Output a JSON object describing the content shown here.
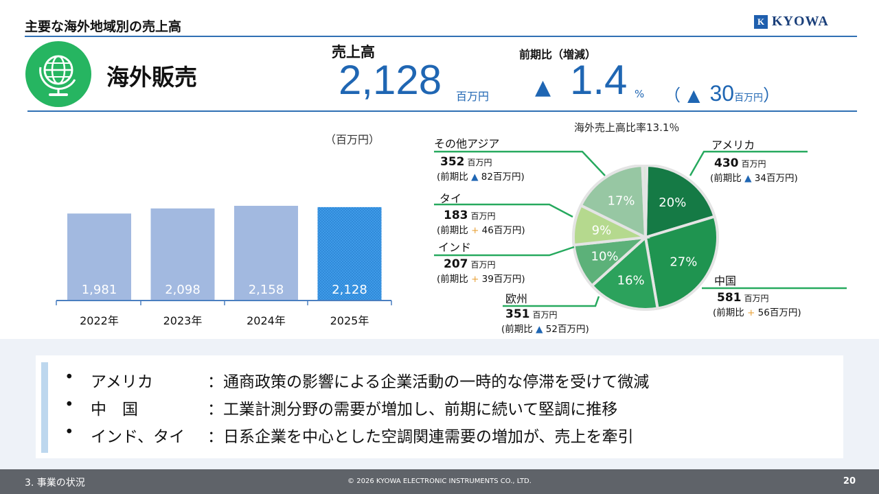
{
  "header": {
    "title": "主要な海外地域別の売上高",
    "logo_text": "KYOWA"
  },
  "section": {
    "title": "海外販売",
    "icon": "globe-icon",
    "icon_color": "#26b561"
  },
  "kpi": {
    "sales_label": "売上高",
    "sales_value": "2,128",
    "sales_unit": "百万円",
    "yoy_label": "前期比（増減）",
    "yoy_triangle": "▲",
    "yoy_value": "1.4",
    "yoy_pct": "%",
    "yoy_paren_open": "（",
    "yoy_paren_triangle": "▲",
    "yoy_amount": "30",
    "yoy_amount_unit": "百万円",
    "yoy_paren_close": "）"
  },
  "colors": {
    "accent_blue": "#1f66b3",
    "bar_fill": "#a2b9e0",
    "bar_highlight": "#3e9be8",
    "increase_marker": "#e8a23a"
  },
  "chart_data": [
    {
      "type": "bar",
      "unit_label": "（百万円）",
      "categories": [
        "2022年",
        "2023年",
        "2024年",
        "2025年"
      ],
      "values": [
        1981,
        2098,
        2158,
        2128
      ],
      "value_labels": [
        "1,981",
        "2,098",
        "2,158",
        "2,128"
      ],
      "highlight_index": 3,
      "grid": false
    },
    {
      "type": "pie",
      "title": "海外売上高比率13.1％",
      "slices": [
        {
          "name": "アメリカ",
          "percent": 20,
          "label": "20%",
          "color": "#157a45"
        },
        {
          "name": "中国",
          "percent": 27,
          "label": "27%",
          "color": "#1f9450"
        },
        {
          "name": "欧州",
          "percent": 16,
          "label": "16%",
          "color": "#2ca25c"
        },
        {
          "name": "インド",
          "percent": 10,
          "label": "10%",
          "color": "#5cb179"
        },
        {
          "name": "タイ",
          "percent": 9,
          "label": "9%",
          "color": "#b5d98e"
        },
        {
          "name": "その他アジア",
          "percent": 17,
          "label": "17%",
          "color": "#97c7a3"
        },
        {
          "name": "",
          "percent": 1,
          "label": "",
          "color": "#d8e8d8"
        }
      ]
    }
  ],
  "regions": {
    "other_asia": {
      "name": "その他アジア",
      "value": "352",
      "unit": "百万円",
      "change_prefix": "(前期比",
      "marker": "▲",
      "change": " 82百万円)"
    },
    "thai": {
      "name": "タイ",
      "value": "183",
      "unit": "百万円",
      "change_prefix": "(前期比",
      "marker": "+",
      "change": " 46百万円)"
    },
    "india": {
      "name": "インド",
      "value": "207",
      "unit": "百万円",
      "change_prefix": "(前期比",
      "marker": "+",
      "change": " 39百万円)"
    },
    "europe": {
      "name": "欧州",
      "value": "351",
      "unit": "百万円",
      "change_prefix": "(前期比",
      "marker": "▲",
      "change": " 52百万円)"
    },
    "america": {
      "name": "アメリカ",
      "value": "430",
      "unit": "百万円",
      "change_prefix": "(前期比",
      "marker": "▲",
      "change": " 34百万円)"
    },
    "china": {
      "name": "中国",
      "value": "581",
      "unit": "百万円",
      "change_prefix": "(前期比",
      "marker": "+",
      "change": " 56百万円)"
    }
  },
  "bullets": [
    {
      "key": "アメリカ　　",
      "desc": "：通商政策の影響による企業活動の一時的な停滞を受けて微減"
    },
    {
      "key": "中　国　　　",
      "desc": "：工業計測分野の需要が増加し、前期に続いて堅調に推移"
    },
    {
      "key": "インド、タイ",
      "desc": "：日系企業を中心とした空調関連需要の増加が、売上を牽引"
    }
  ],
  "bullet_symbol": "•",
  "footer": {
    "section": "3.  事業の状況",
    "copyright": "© 2026 KYOWA ELECTRONIC INSTRUMENTS CO., LTD.",
    "page": "20"
  }
}
